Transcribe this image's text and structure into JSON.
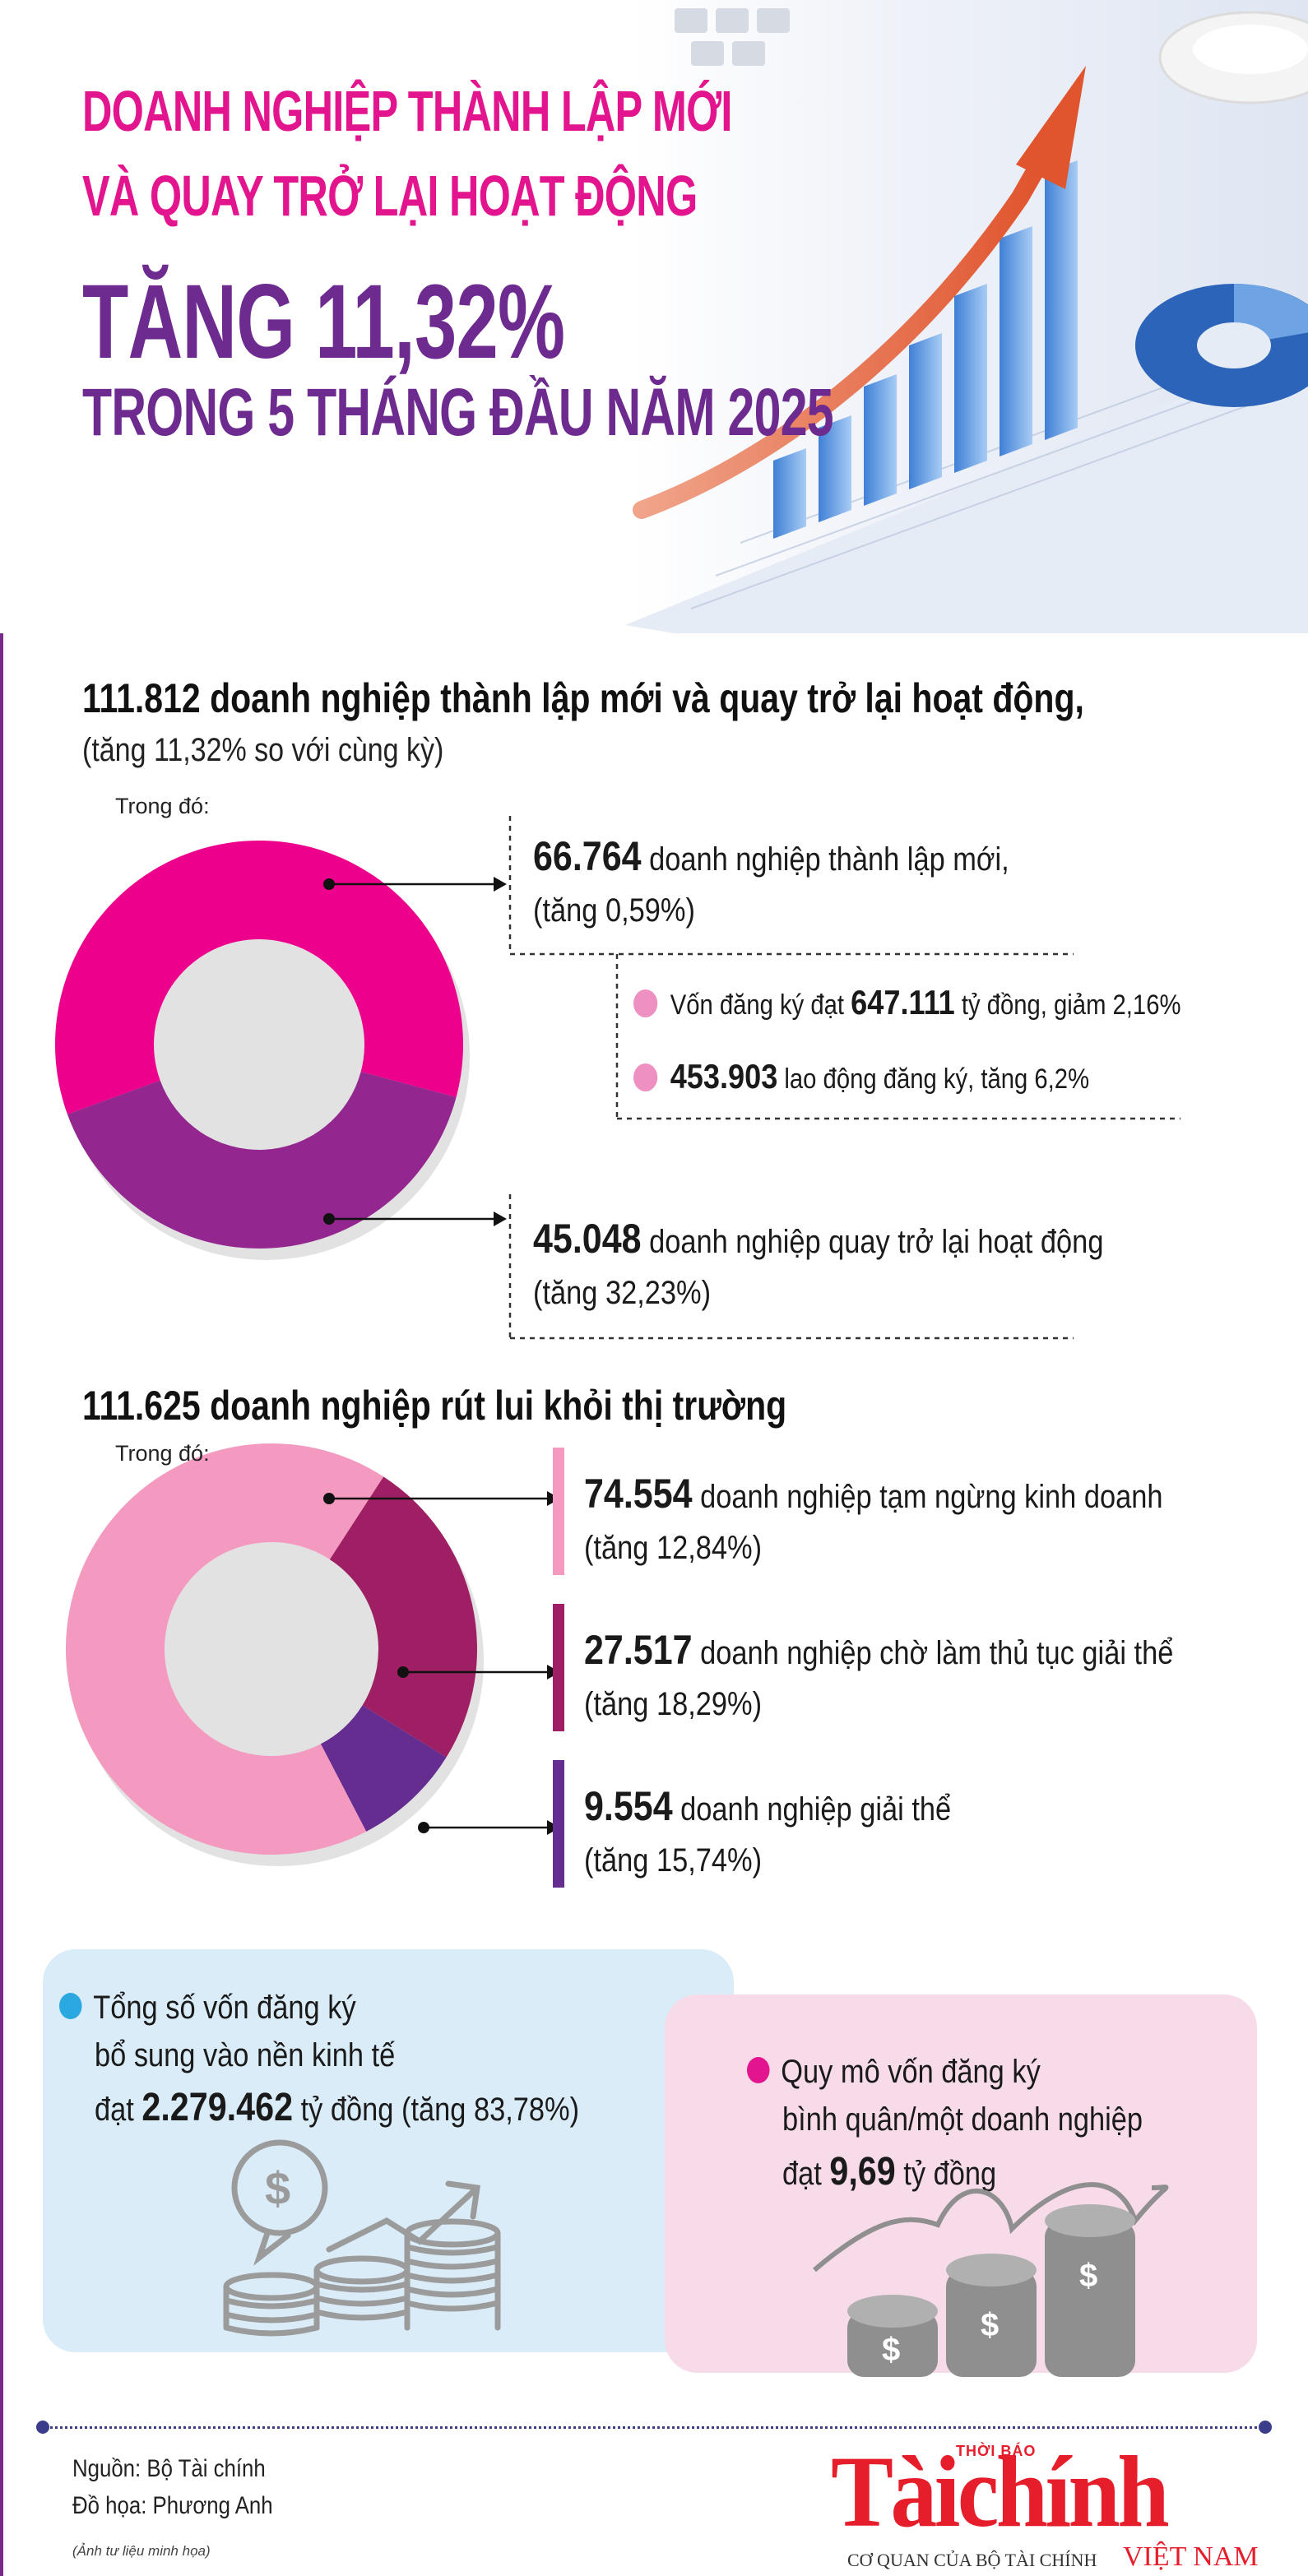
{
  "header": {
    "line1": "DOANH NGHIỆP THÀNH LẬP MỚI",
    "line2": "VÀ QUAY TRỞ LẠI HOẠT ĐỘNG",
    "line3": "TĂNG 11,32%",
    "line4": "TRONG 5 THÁNG ĐẦU NĂM 2025"
  },
  "section1": {
    "title": "111.812 doanh nghiệp thành lập mới và quay trở lại hoạt động,",
    "subtitle": "(tăng 11,32% so với cùng kỳ)",
    "label": "Trong đó:",
    "new": {
      "value": "66.764",
      "text": " doanh nghiệp thành lập mới,",
      "change": "(tăng 0,59%)"
    },
    "capital": {
      "prefix": "Vốn đăng ký đạt ",
      "value": "647.111",
      "suffix": " tỷ đồng, giảm 2,16%"
    },
    "labor": {
      "value": "453.903",
      "suffix": " lao động đăng ký, tăng 6,2%"
    },
    "returned": {
      "value": "45.048",
      "text": " doanh nghiệp quay trở lại hoạt động",
      "change": "(tăng 32,23%)"
    }
  },
  "section2": {
    "title": "111.625 doanh nghiệp rút lui khỏi thị trường",
    "label": "Trong đó:",
    "suspended": {
      "value": "74.554",
      "text": " doanh nghiệp tạm ngừng kinh doanh",
      "change": "(tăng 12,84%)"
    },
    "pending": {
      "value": "27.517",
      "text": " doanh nghiệp chờ làm thủ tục giải thể",
      "change": "(tăng 18,29%)"
    },
    "dissolved": {
      "value": "9.554",
      "text": " doanh nghiệp giải thể",
      "change": "(tăng 15,74%)"
    }
  },
  "box_blue": {
    "line1": "Tổng số vốn đăng ký",
    "line2": "bổ sung vào nền kinh tế",
    "line3_prefix": "đạt ",
    "value": "2.279.462",
    "line3_suffix": " tỷ đồng (tăng 83,78%)",
    "dot_color": "#2aa8e0"
  },
  "box_pink": {
    "line1": "Quy mô vốn đăng ký",
    "line2": "bình quân/một doanh nghiệp",
    "line3_prefix": "đạt ",
    "value": "9,69",
    "line3_suffix": " tỷ đồng",
    "dot_color": "#e3158e"
  },
  "footer": {
    "source": "Nguồn: Bộ Tài chính",
    "design": "Đồ họa: Phương Anh",
    "note": "(Ảnh tư liệu minh họa)"
  },
  "logo": {
    "top": "THỜI BÁO",
    "name": "Tàichính",
    "sub": "CƠ QUAN CỦA BỘ TÀI CHÍNH",
    "country": "VIỆT NAM"
  },
  "colors": {
    "pink": "#e3158e",
    "purple": "#6e2b8f",
    "donut1_a": "#ec008c",
    "donut1_b": "#93278f",
    "donut2_a": "#f49ac1",
    "donut2_b": "#9e1f63",
    "donut2_c": "#662d91"
  },
  "chart_data": [
    {
      "type": "pie",
      "categories": [
        "doanh nghiệp thành lập mới",
        "doanh nghiệp quay trở lại hoạt động"
      ],
      "values": [
        66764,
        45048
      ],
      "title": ""
    },
    {
      "type": "pie",
      "categories": [
        "doanh nghiệp tạm ngừng kinh doanh",
        "doanh nghiệp chờ làm thủ tục giải thể",
        "doanh nghiệp giải thể"
      ],
      "values": [
        74554,
        27517,
        9554
      ],
      "title": ""
    }
  ]
}
